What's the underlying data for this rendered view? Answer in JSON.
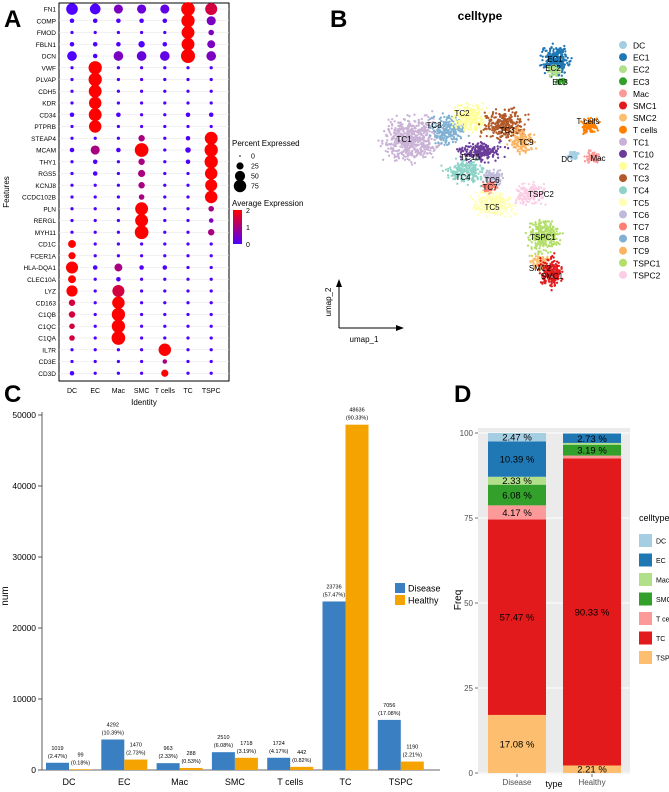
{
  "panels": {
    "a_label": "A",
    "b_label": "B",
    "c_label": "C",
    "d_label": "D"
  },
  "chart_data": [
    {
      "panel": "A",
      "type": "dotplot",
      "xlabel": "Identity",
      "ylabel": "Features",
      "identities": [
        "DC",
        "EC",
        "Mac",
        "SMC",
        "T cells",
        "TC",
        "TSPC"
      ],
      "features": [
        "FN1",
        "COMP",
        "FMOD",
        "FBLN1",
        "DCN",
        "VWF",
        "PLVAP",
        "CDH5",
        "KDR",
        "CD34",
        "PTPRB",
        "STEAP4",
        "MCAM",
        "THY1",
        "RGS5",
        "KCNJ8",
        "CCDC102B",
        "PLN",
        "RERGL",
        "MYH11",
        "CD1C",
        "FCER1A",
        "HLA-DQA1",
        "CLEC10A",
        "LYZ",
        "CD163",
        "C1QB",
        "C1QC",
        "C1QA",
        "IL7R",
        "CD3E",
        "CD3D"
      ],
      "percent_expressed": [
        [
          65,
          55,
          40,
          40,
          40,
          90,
          70
        ],
        [
          10,
          10,
          10,
          10,
          10,
          85,
          40
        ],
        [
          5,
          5,
          5,
          5,
          5,
          80,
          15
        ],
        [
          10,
          10,
          10,
          20,
          10,
          80,
          30
        ],
        [
          45,
          10,
          45,
          45,
          45,
          95,
          45
        ],
        [
          5,
          85,
          5,
          5,
          5,
          5,
          5
        ],
        [
          5,
          85,
          5,
          5,
          5,
          5,
          5
        ],
        [
          5,
          80,
          5,
          5,
          5,
          5,
          5
        ],
        [
          5,
          75,
          5,
          5,
          5,
          5,
          5
        ],
        [
          10,
          80,
          10,
          5,
          5,
          10,
          10
        ],
        [
          5,
          75,
          5,
          5,
          5,
          5,
          5
        ],
        [
          5,
          5,
          5,
          20,
          5,
          10,
          80
        ],
        [
          10,
          40,
          10,
          90,
          5,
          15,
          85
        ],
        [
          5,
          10,
          5,
          20,
          5,
          10,
          85
        ],
        [
          5,
          10,
          5,
          25,
          5,
          5,
          75
        ],
        [
          5,
          5,
          5,
          20,
          5,
          5,
          70
        ],
        [
          5,
          5,
          5,
          15,
          5,
          5,
          75
        ],
        [
          5,
          5,
          5,
          80,
          5,
          5,
          15
        ],
        [
          5,
          5,
          5,
          80,
          5,
          5,
          10
        ],
        [
          5,
          5,
          5,
          90,
          5,
          5,
          20
        ],
        [
          30,
          5,
          5,
          5,
          5,
          5,
          5
        ],
        [
          25,
          5,
          5,
          5,
          5,
          5,
          5
        ],
        [
          70,
          10,
          30,
          10,
          10,
          5,
          5
        ],
        [
          30,
          5,
          10,
          5,
          5,
          5,
          5
        ],
        [
          60,
          5,
          70,
          5,
          5,
          5,
          5
        ],
        [
          20,
          5,
          75,
          5,
          5,
          5,
          5
        ],
        [
          20,
          5,
          85,
          5,
          5,
          5,
          5
        ],
        [
          15,
          5,
          85,
          5,
          5,
          5,
          5
        ],
        [
          15,
          5,
          90,
          5,
          5,
          5,
          5
        ],
        [
          5,
          5,
          5,
          5,
          75,
          5,
          5
        ],
        [
          5,
          5,
          5,
          5,
          10,
          5,
          5
        ],
        [
          10,
          5,
          5,
          5,
          25,
          5,
          5
        ]
      ],
      "average_expression": [
        [
          0,
          0,
          0.5,
          0.3,
          0.2,
          2,
          1.5
        ],
        [
          0,
          0,
          0,
          0,
          0,
          2,
          0.5
        ],
        [
          0,
          0,
          0,
          0,
          0,
          2,
          0.5
        ],
        [
          0,
          0,
          0,
          0,
          0,
          2,
          0.5
        ],
        [
          0,
          0,
          0.5,
          0.3,
          0.2,
          2,
          0.5
        ],
        [
          0,
          2,
          0,
          0,
          0,
          0,
          0
        ],
        [
          0,
          2,
          0,
          0,
          0,
          0,
          0
        ],
        [
          0,
          2,
          0,
          0,
          0,
          0,
          0
        ],
        [
          0,
          2,
          0,
          0,
          0,
          0,
          0
        ],
        [
          0,
          2,
          0,
          0,
          0,
          0,
          0
        ],
        [
          0,
          2,
          0,
          0,
          0,
          0,
          0
        ],
        [
          0,
          0,
          0,
          1,
          0,
          0,
          2
        ],
        [
          0,
          1,
          0,
          2,
          0,
          0,
          2
        ],
        [
          0,
          0,
          0,
          1,
          0,
          0,
          2
        ],
        [
          0,
          0,
          0,
          1,
          0,
          0,
          2
        ],
        [
          0,
          0,
          0,
          1,
          0,
          0,
          2
        ],
        [
          0,
          0,
          0,
          1,
          0,
          0,
          2
        ],
        [
          0,
          0,
          0,
          2,
          0,
          0,
          1
        ],
        [
          0,
          0,
          0,
          2,
          0,
          0,
          0.5
        ],
        [
          0,
          0,
          0,
          2,
          0,
          0,
          1
        ],
        [
          2,
          0,
          0,
          0,
          0,
          0,
          0
        ],
        [
          2,
          0,
          0,
          0,
          0,
          0,
          0
        ],
        [
          2,
          0,
          1,
          0,
          0,
          0,
          0
        ],
        [
          2,
          0,
          0,
          0,
          0,
          0,
          0
        ],
        [
          2,
          0,
          1.5,
          0,
          0,
          0,
          0
        ],
        [
          1.5,
          0,
          2,
          0,
          0,
          0,
          0
        ],
        [
          1.5,
          0,
          2,
          0,
          0,
          0,
          0
        ],
        [
          1.5,
          0,
          2,
          0,
          0,
          0,
          0
        ],
        [
          1.5,
          0,
          2,
          0,
          0,
          0,
          0
        ],
        [
          0,
          0,
          0,
          0,
          2,
          0,
          0
        ],
        [
          0,
          0,
          0,
          0,
          1,
          0,
          0
        ],
        [
          0,
          0,
          0,
          0,
          2,
          0,
          0
        ]
      ],
      "legend_size_title": "Percent Expressed",
      "legend_size_values": [
        0,
        25,
        50,
        75
      ],
      "legend_color_title": "Average Expression",
      "legend_color_ticks": [
        2,
        1,
        0
      ],
      "colors": {
        "low": "#5000ff",
        "high": "#ff0000"
      }
    },
    {
      "panel": "B",
      "type": "scatter",
      "title": "celltype",
      "xlabel": "umap_1",
      "ylabel": "umap_2",
      "legend_position": "right",
      "clusters": [
        {
          "name": "DC",
          "color": "#a6cee3"
        },
        {
          "name": "EC1",
          "color": "#1f78b4"
        },
        {
          "name": "EC2",
          "color": "#b2df8a"
        },
        {
          "name": "EC3",
          "color": "#33a02c"
        },
        {
          "name": "Mac",
          "color": "#fb9a99"
        },
        {
          "name": "SMC1",
          "color": "#e31a1c"
        },
        {
          "name": "SMC2",
          "color": "#fdbf6f"
        },
        {
          "name": "T cells",
          "color": "#ff7f00"
        },
        {
          "name": "TC1",
          "color": "#cab2d6"
        },
        {
          "name": "TC10",
          "color": "#6a3d9a"
        },
        {
          "name": "TC2",
          "color": "#ffff99"
        },
        {
          "name": "TC3",
          "color": "#b15928"
        },
        {
          "name": "TC4",
          "color": "#8dd3c7"
        },
        {
          "name": "TC5",
          "color": "#ffffb3"
        },
        {
          "name": "TC6",
          "color": "#bebada"
        },
        {
          "name": "TC7",
          "color": "#fb8072"
        },
        {
          "name": "TC8",
          "color": "#80b1d3"
        },
        {
          "name": "TC9",
          "color": "#fdb462"
        },
        {
          "name": "TSPC1",
          "color": "#b3de69"
        },
        {
          "name": "TSPC2",
          "color": "#fccde5"
        }
      ]
    },
    {
      "panel": "C",
      "type": "bar",
      "xlabel": "",
      "ylabel": "num",
      "ylim": [
        0,
        50000
      ],
      "y_ticks": [
        0,
        10000,
        20000,
        30000,
        40000,
        50000
      ],
      "categories": [
        "DC",
        "EC",
        "Mac",
        "SMC",
        "T cells",
        "TC",
        "TSPC"
      ],
      "legend_position": "right",
      "series": [
        {
          "name": "Disease",
          "color": "#3a7fc1",
          "values": [
            1019,
            4292,
            963,
            2510,
            1724,
            23736,
            7056
          ],
          "labels": [
            "1019",
            "4292",
            "963",
            "2510",
            "1724",
            "23736",
            "7056"
          ],
          "pct": [
            "(2.47%)",
            "(10.39%)",
            "(2.33%)",
            "(6.08%)",
            "(4.17%)",
            "(57.47%)",
            "(17.08%)"
          ]
        },
        {
          "name": "Healthy",
          "color": "#f5a300",
          "values": [
            99,
            1470,
            288,
            1718,
            442,
            48636,
            1190
          ],
          "labels": [
            "99",
            "1470",
            "288",
            "1718",
            "442",
            "48636",
            "1190"
          ],
          "pct": [
            "(0.18%)",
            "(2.73%)",
            "(0.53%)",
            "(3.19%)",
            "(0.82%)",
            "(90.33%)",
            "(2.21%)"
          ]
        }
      ]
    },
    {
      "panel": "D",
      "type": "bar",
      "stacked": true,
      "xlabel": "type",
      "ylabel": "Freq",
      "ylim": [
        0,
        100
      ],
      "y_ticks": [
        0,
        25,
        50,
        75,
        100
      ],
      "categories": [
        "Disease",
        "Healthy"
      ],
      "legend_title": "celltype",
      "legend_position": "right",
      "stack_order": [
        "TSPC",
        "TC",
        "T cells",
        "SMC",
        "Mac",
        "EC",
        "DC"
      ],
      "series": [
        {
          "name": "DC",
          "color": "#a6cee3",
          "values": [
            2.47,
            0.18
          ],
          "labels": [
            "2.47 %",
            ""
          ]
        },
        {
          "name": "EC",
          "color": "#1f78b4",
          "values": [
            10.39,
            2.73
          ],
          "labels": [
            "10.39 %",
            "2.73 %"
          ]
        },
        {
          "name": "Mac",
          "color": "#b2df8a",
          "values": [
            2.33,
            0.53
          ],
          "labels": [
            "2.33 %",
            ""
          ]
        },
        {
          "name": "SMC",
          "color": "#33a02c",
          "values": [
            6.08,
            3.19
          ],
          "labels": [
            "6.08 %",
            "3.19 %"
          ]
        },
        {
          "name": "T cells",
          "color": "#fb9a99",
          "values": [
            4.17,
            0.82
          ],
          "labels": [
            "4.17 %",
            ""
          ]
        },
        {
          "name": "TC",
          "color": "#e31a1c",
          "values": [
            57.47,
            90.33
          ],
          "labels": [
            "57.47 %",
            "90.33 %"
          ]
        },
        {
          "name": "TSPC",
          "color": "#fdbf6f",
          "values": [
            17.08,
            2.21
          ],
          "labels": [
            "17.08 %",
            "2.21 %"
          ]
        }
      ]
    }
  ]
}
